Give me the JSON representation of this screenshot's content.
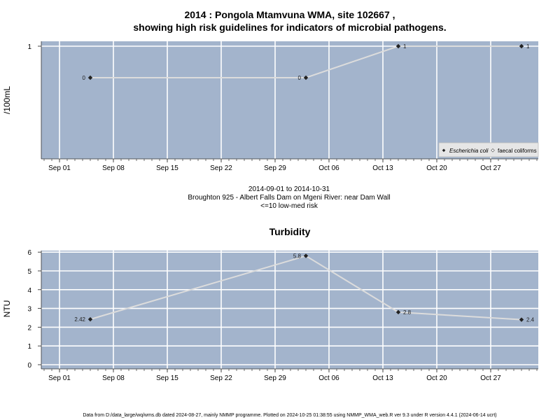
{
  "chart_data": [
    {
      "type": "line",
      "title_line1": "2014 : Pongola Mtamvuna WMA, site 102667 ,",
      "title_line2": "showing high risk guidelines for indicators of microbial pathogens.",
      "ylabel": "/100mL",
      "x_tick_labels": [
        "Sep 01",
        "Sep 08",
        "Sep 15",
        "Sep 22",
        "Sep 29",
        "Oct 06",
        "Oct 13",
        "Oct 20",
        "Oct 27"
      ],
      "y_tick_labels": [
        "1"
      ],
      "series": [
        {
          "name": "Escherichia coli",
          "x": [
            "2014-09-05",
            "2014-10-03",
            "2014-10-15",
            "2014-10-31"
          ],
          "values": [
            0,
            0,
            1,
            1
          ],
          "labels": [
            "0",
            "0",
            "1",
            "1"
          ]
        }
      ],
      "legend": {
        "position": "bottom-right",
        "items": [
          "Escherichia coli",
          "faecal coliforms"
        ]
      },
      "grid": true,
      "background_color": "#a3b4cc",
      "line_color": "#dcdcdc"
    },
    {
      "type": "line",
      "title": "Turbidity",
      "ylabel": "NTU",
      "ylim": [
        0,
        6
      ],
      "x_tick_labels": [
        "Sep 01",
        "Sep 08",
        "Sep 15",
        "Sep 22",
        "Sep 29",
        "Oct 06",
        "Oct 13",
        "Oct 20",
        "Oct 27"
      ],
      "y_tick_labels": [
        "0",
        "1",
        "2",
        "3",
        "4",
        "5",
        "6"
      ],
      "series": [
        {
          "name": "Turbidity",
          "x": [
            "2014-09-05",
            "2014-10-03",
            "2014-10-15",
            "2014-10-31"
          ],
          "values": [
            2.42,
            5.8,
            2.8,
            2.4
          ],
          "labels": [
            "2.42",
            "5.8",
            "2.8",
            "2.4"
          ]
        }
      ],
      "grid": true,
      "background_color": "#a3b4cc",
      "line_color": "#dcdcdc"
    }
  ],
  "middle_text": {
    "date_range": "2014-09-01 to 2014-10-31",
    "station": "Broughton 925 - Albert Falls Dam on Mgeni River: near Dam Wall",
    "risk": "<=10 low-med risk"
  },
  "footer": "Data from D:/data_large/wq/wms.db dated 2024-08-27, mainly NMMP programme. Plotted on 2024-10-25 01:38:55 using NMMP_WMA_web.R ver 9.3 under R version 4.4.1 (2024-06-14 ucrt)"
}
